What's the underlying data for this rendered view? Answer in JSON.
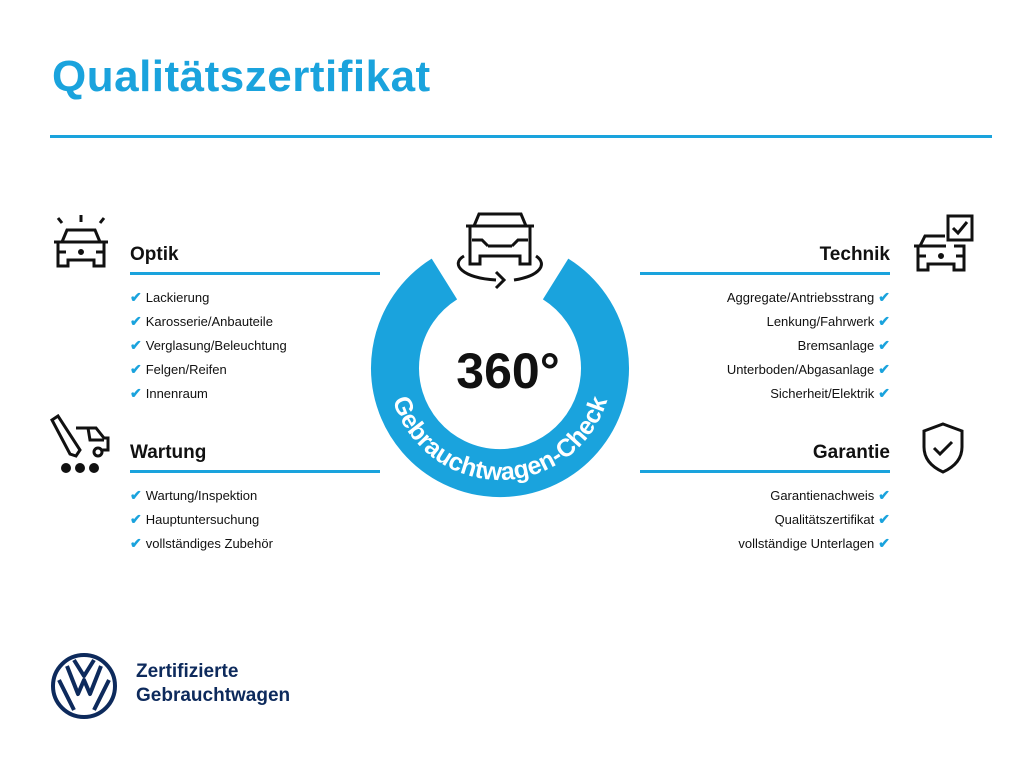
{
  "title": "Qualitätszertifikat",
  "center": {
    "big": "360°",
    "ring_text": "Gebrauchtwagen-Check",
    "ring_color": "#1aa3dd"
  },
  "check_icon": "✔",
  "sections": {
    "optik": {
      "heading": "Optik",
      "icon": "car-headlights-icon",
      "items": [
        "Lackierung",
        "Karosserie/Anbauteile",
        "Verglasung/Beleuchtung",
        "Felgen/Reifen",
        "Innenraum"
      ]
    },
    "wartung": {
      "heading": "Wartung",
      "icon": "service-wrench-car-icon",
      "items": [
        "Wartung/Inspektion",
        "Hauptuntersuchung",
        "vollständiges Zubehör"
      ]
    },
    "technik": {
      "heading": "Technik",
      "icon": "car-checkbox-icon",
      "items": [
        "Aggregate/Antriebsstrang",
        "Lenkung/Fahrwerk",
        "Bremsanlage",
        "Unterboden/Abgasanlage",
        "Sicherheit/Elektrik"
      ]
    },
    "garantie": {
      "heading": "Garantie",
      "icon": "shield-check-icon",
      "items": [
        "Garantienachweis",
        "Qualitätszertifikat",
        "vollständige Unterlagen"
      ]
    }
  },
  "footer": {
    "line1": "Zertifizierte",
    "line2": "Gebrauchtwagen",
    "brand_color": "#0d2a5c"
  },
  "colors": {
    "accent": "#1aa3dd",
    "text": "#111111"
  }
}
